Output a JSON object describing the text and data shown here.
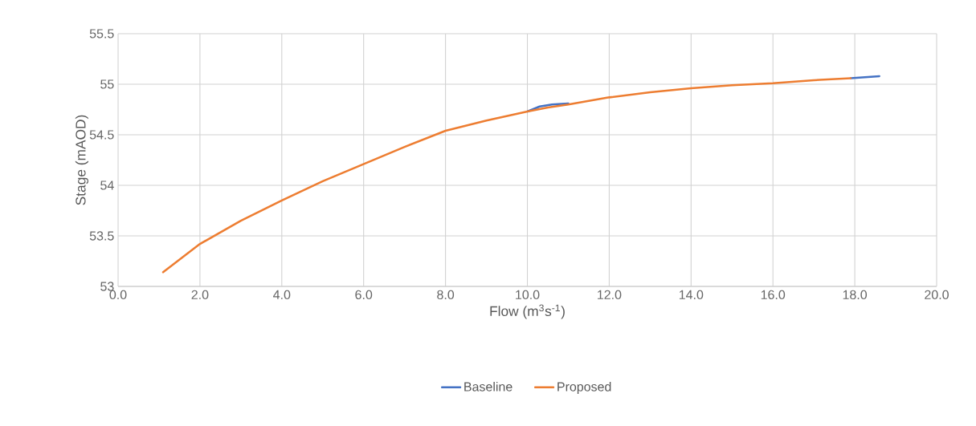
{
  "chart_data": {
    "type": "line",
    "xlabel": "Flow (m$^{3}$s$^{-1}$)",
    "ylabel": "Stage (mAOD)",
    "xlim": [
      0,
      20
    ],
    "ylim": [
      53,
      55.5
    ],
    "xticks": [
      {
        "value": 0,
        "label": "0.0"
      },
      {
        "value": 2,
        "label": "2.0"
      },
      {
        "value": 4,
        "label": "4.0"
      },
      {
        "value": 6,
        "label": "6.0"
      },
      {
        "value": 8,
        "label": "8.0"
      },
      {
        "value": 10,
        "label": "10.0"
      },
      {
        "value": 12,
        "label": "12.0"
      },
      {
        "value": 14,
        "label": "14.0"
      },
      {
        "value": 16,
        "label": "16.0"
      },
      {
        "value": 18,
        "label": "18.0"
      },
      {
        "value": 20,
        "label": "20.0"
      }
    ],
    "yticks": [
      53,
      53.5,
      54,
      54.5,
      55,
      55.5
    ],
    "grid": true,
    "legend": "bottom",
    "marker": "none",
    "line_style": "solid",
    "series": [
      {
        "name": "Baseline",
        "color": "#4472c4",
        "x": [
          10.0,
          10.3,
          10.6,
          11.0,
          14.0,
          17.9,
          18.6
        ],
        "values": [
          54.73,
          54.78,
          54.8,
          54.81,
          null,
          55.06,
          55.08
        ]
      },
      {
        "name": "Proposed",
        "color": "#ed7d31",
        "x": [
          1.1,
          2.0,
          3.0,
          4.0,
          5.0,
          6.0,
          7.0,
          8.0,
          9.0,
          10.0,
          10.5,
          11.0,
          12.0,
          13.0,
          14.0,
          15.0,
          16.0,
          17.0,
          17.9
        ],
        "values": [
          53.14,
          53.42,
          53.65,
          53.85,
          54.04,
          54.21,
          54.38,
          54.54,
          54.64,
          54.73,
          54.77,
          54.8,
          54.87,
          54.92,
          54.96,
          54.99,
          55.01,
          55.04,
          55.06
        ]
      }
    ]
  }
}
